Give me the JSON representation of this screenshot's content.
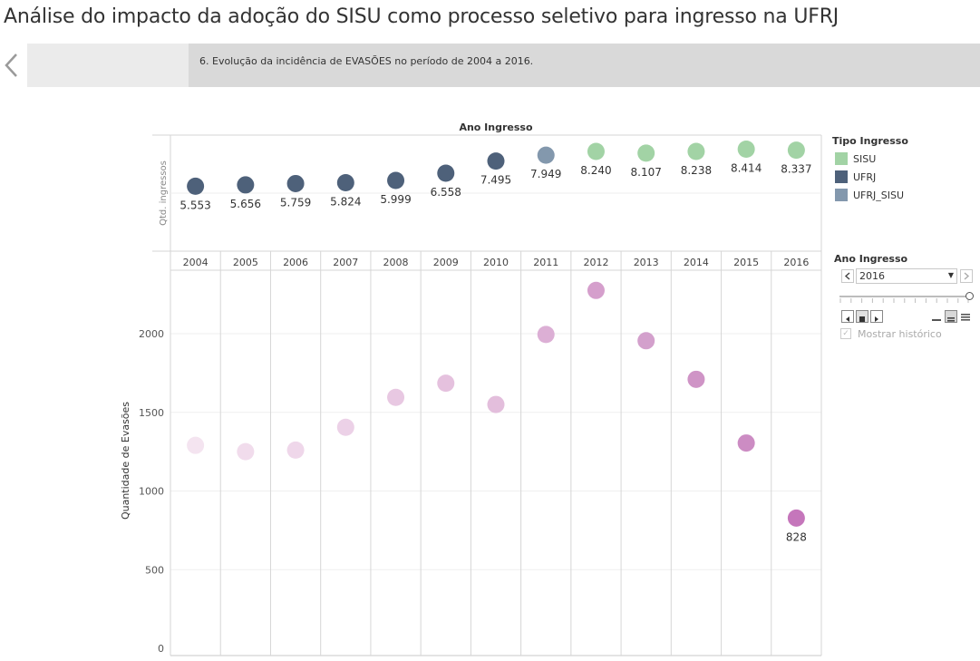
{
  "page": {
    "title": "Análise do impacto da adoção do SISU como processo seletivo para ingresso na UFRJ",
    "story_caption": "6. Evolução da incidência de EVASÕES no período de 2004 a 2016."
  },
  "legend": {
    "title": "Tipo Ingresso",
    "items": [
      {
        "label": "SISU",
        "color": "#a2d3a5"
      },
      {
        "label": "UFRJ",
        "color": "#4e617a"
      },
      {
        "label": "UFRJ_SISU",
        "color": "#8398ad"
      }
    ]
  },
  "filter": {
    "title": "Ano Ingresso",
    "selected": "2016",
    "show_history_label": "Mostrar histórico",
    "show_history_checked": true
  },
  "chart_data": [
    {
      "type": "scatter",
      "title": "Ano Ingresso",
      "ylabel": "Qtd. ingressos",
      "categories": [
        "2004",
        "2005",
        "2006",
        "2007",
        "2008",
        "2009",
        "2010",
        "2011",
        "2012",
        "2013",
        "2014",
        "2015",
        "2016"
      ],
      "values": [
        5553,
        5656,
        5759,
        5824,
        5999,
        6558,
        7495,
        7949,
        8240,
        8107,
        8238,
        8414,
        8337
      ],
      "labels": [
        "5.553",
        "5.656",
        "5.759",
        "5.824",
        "5.999",
        "6.558",
        "7.495",
        "7.949",
        "8.240",
        "8.107",
        "8.238",
        "8.414",
        "8.337"
      ],
      "types": [
        "UFRJ",
        "UFRJ",
        "UFRJ",
        "UFRJ",
        "UFRJ",
        "UFRJ",
        "UFRJ",
        "UFRJ_SISU",
        "SISU",
        "SISU",
        "SISU",
        "SISU",
        "SISU"
      ],
      "grid": false
    },
    {
      "type": "scatter",
      "ylabel": "Quantidade de Evasões",
      "categories": [
        "2004",
        "2005",
        "2006",
        "2007",
        "2008",
        "2009",
        "2010",
        "2011",
        "2012",
        "2013",
        "2014",
        "2015",
        "2016"
      ],
      "values": [
        1290,
        1250,
        1260,
        1405,
        1595,
        1685,
        1550,
        1995,
        2275,
        1955,
        1710,
        1305,
        828
      ],
      "point_colors": [
        "#f4e4f0",
        "#f1dcec",
        "#efd7ea",
        "#ecd1e7",
        "#e8c8e2",
        "#e5c1de",
        "#e3bedc",
        "#dcafd5",
        "#d59fcc",
        "#d3a0cc",
        "#cf94c6",
        "#cc8cc3",
        "#c576bb"
      ],
      "labeled_point": {
        "index": 12,
        "text": "828"
      },
      "yticks": [
        0,
        500,
        1000,
        1500,
        2000
      ],
      "ylim": [
        0,
        2400
      ],
      "grid": true
    }
  ]
}
